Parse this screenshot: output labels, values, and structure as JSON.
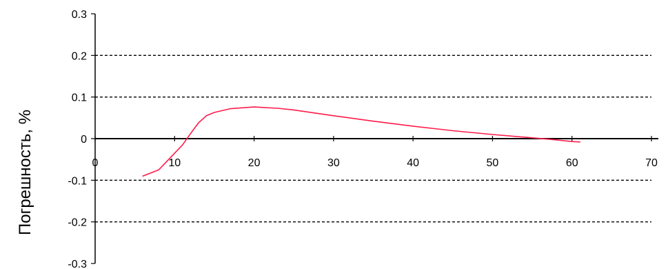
{
  "chart_data": {
    "type": "line",
    "ylabel": "Погрешность, %",
    "xlim": [
      0,
      70
    ],
    "ylim": [
      -0.3,
      0.3
    ],
    "x_ticks": [
      "0",
      "10",
      "20",
      "30",
      "40",
      "50",
      "60",
      "70"
    ],
    "y_ticks": [
      "0.3",
      "0.2",
      "0.1",
      "0",
      "-0.1",
      "-0.2",
      "-0.3"
    ],
    "grid": "horizontal dashed",
    "series": [
      {
        "color": "#ff1a4a",
        "x": [
          6,
          8,
          9,
          10,
          11,
          12,
          13,
          14,
          15,
          17,
          20,
          23,
          25,
          30,
          35,
          40,
          45,
          50,
          55,
          58,
          60,
          61
        ],
        "y": [
          -0.09,
          -0.075,
          -0.055,
          -0.035,
          -0.015,
          0.012,
          0.038,
          0.055,
          0.063,
          0.072,
          0.076,
          0.073,
          0.069,
          0.055,
          0.042,
          0.03,
          0.019,
          0.01,
          0.002,
          -0.003,
          -0.007,
          -0.008
        ]
      }
    ]
  }
}
